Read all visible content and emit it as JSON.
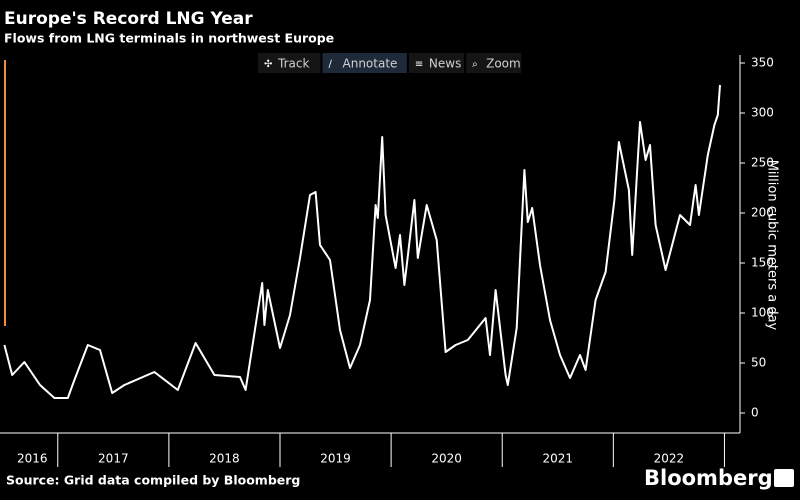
{
  "chart_data": {
    "type": "line",
    "title": "Europe's Record LNG Year",
    "subtitle": "Flows from LNG terminals in northwest Europe",
    "ylabel": "Million cubic meters a day",
    "source": "Source: Grid data compiled by Bloomberg",
    "brand": "Bloomberg",
    "toolbar": [
      "Track",
      "Annotate",
      "News",
      "Zoom"
    ],
    "xlim": [
      2016.48,
      2023.14
    ],
    "ylim": [
      -20,
      358
    ],
    "yticks": [
      0,
      50,
      100,
      150,
      200,
      250,
      300,
      350
    ],
    "xticks": [
      2017,
      2018,
      2019,
      2020,
      2021,
      2022,
      2023
    ],
    "xtick_labels": [
      {
        "value": 2016.77,
        "label": "2016"
      },
      {
        "value": 2017.5,
        "label": "2017"
      },
      {
        "value": 2018.5,
        "label": "2018"
      },
      {
        "value": 2019.5,
        "label": "2019"
      },
      {
        "value": 2020.5,
        "label": "2020"
      },
      {
        "value": 2021.5,
        "label": "2021"
      },
      {
        "value": 2022.5,
        "label": "2022"
      }
    ],
    "series": [
      {
        "color": "#ffffff",
        "x": [
          2016.52,
          2016.59,
          2016.7,
          2016.84,
          2016.97,
          2017.09,
          2017.15,
          2017.27,
          2017.38,
          2017.49,
          2017.6,
          2017.87,
          2018.08,
          2018.24,
          2018.41,
          2018.64,
          2018.69,
          2018.84,
          2018.86,
          2018.89,
          2019.0,
          2019.09,
          2019.18,
          2019.27,
          2019.32,
          2019.36,
          2019.45,
          2019.54,
          2019.63,
          2019.72,
          2019.81,
          2019.86,
          2019.88,
          2019.92,
          2019.95,
          2020.04,
          2020.08,
          2020.12,
          2020.21,
          2020.24,
          2020.32,
          2020.41,
          2020.49,
          2020.58,
          2020.69,
          2020.85,
          2020.89,
          2020.94,
          2021.03,
          2021.05,
          2021.13,
          2021.2,
          2021.23,
          2021.27,
          2021.34,
          2021.43,
          2021.52,
          2021.61,
          2021.7,
          2021.75,
          2021.84,
          2021.93,
          2022.01,
          2022.05,
          2022.14,
          2022.17,
          2022.24,
          2022.29,
          2022.33,
          2022.38,
          2022.47,
          2022.6,
          2022.69,
          2022.74,
          2022.77,
          2022.85,
          2022.91,
          2022.94,
          2022.96
        ],
        "values": [
          68,
          38,
          51,
          28,
          15,
          15,
          33,
          68,
          63,
          20,
          28,
          41,
          23,
          70,
          38,
          36,
          23,
          130,
          88,
          123,
          65,
          98,
          155,
          218,
          221,
          168,
          153,
          83,
          45,
          68,
          113,
          208,
          195,
          276,
          198,
          145,
          178,
          128,
          213,
          155,
          208,
          173,
          61,
          68,
          73,
          95,
          58,
          123,
          38,
          28,
          85,
          243,
          191,
          205,
          148,
          93,
          58,
          35,
          58,
          43,
          113,
          141,
          213,
          271,
          223,
          158,
          291,
          253,
          268,
          188,
          143,
          198,
          188,
          228,
          198,
          258,
          288,
          298,
          328
        ]
      }
    ]
  }
}
